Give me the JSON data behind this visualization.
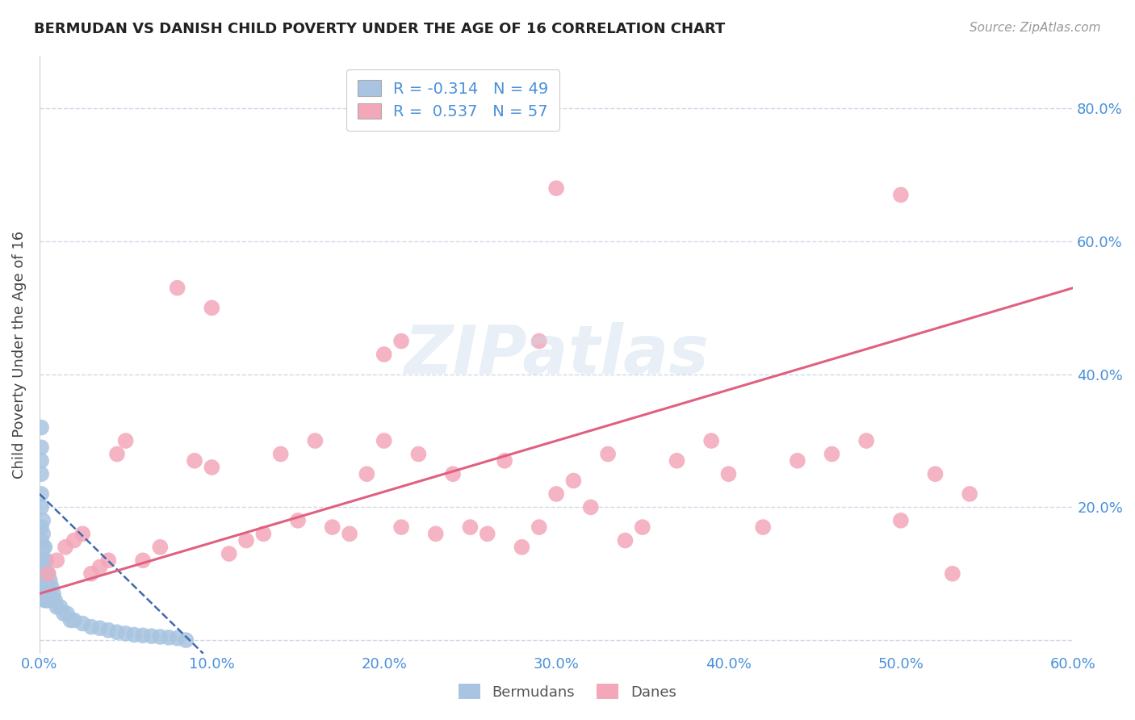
{
  "title": "BERMUDAN VS DANISH CHILD POVERTY UNDER THE AGE OF 16 CORRELATION CHART",
  "source": "Source: ZipAtlas.com",
  "ylabel": "Child Poverty Under the Age of 16",
  "xlim": [
    0.0,
    0.6
  ],
  "ylim": [
    -0.02,
    0.88
  ],
  "blue_color": "#a8c4e0",
  "pink_color": "#f4a7b9",
  "blue_line_color": "#4169b0",
  "pink_line_color": "#e06080",
  "tick_label_color": "#4a90d9",
  "watermark": "ZIPatlas",
  "grid_color": "#d0d8e8",
  "bermuda_x": [
    0.001,
    0.001,
    0.001,
    0.001,
    0.001,
    0.001,
    0.001,
    0.001,
    0.002,
    0.002,
    0.002,
    0.002,
    0.002,
    0.002,
    0.003,
    0.003,
    0.003,
    0.003,
    0.003,
    0.004,
    0.004,
    0.004,
    0.004,
    0.005,
    0.005,
    0.005,
    0.006,
    0.007,
    0.008,
    0.009,
    0.01,
    0.012,
    0.014,
    0.016,
    0.018,
    0.02,
    0.025,
    0.03,
    0.035,
    0.04,
    0.045,
    0.05,
    0.055,
    0.06,
    0.065,
    0.07,
    0.075,
    0.08,
    0.085
  ],
  "bermuda_y": [
    0.32,
    0.29,
    0.27,
    0.25,
    0.22,
    0.2,
    0.17,
    0.15,
    0.18,
    0.16,
    0.14,
    0.12,
    0.1,
    0.08,
    0.14,
    0.12,
    0.1,
    0.08,
    0.06,
    0.12,
    0.1,
    0.08,
    0.06,
    0.1,
    0.08,
    0.06,
    0.09,
    0.08,
    0.07,
    0.06,
    0.05,
    0.05,
    0.04,
    0.04,
    0.03,
    0.03,
    0.025,
    0.02,
    0.018,
    0.015,
    0.012,
    0.01,
    0.008,
    0.007,
    0.006,
    0.005,
    0.004,
    0.003,
    0.0
  ],
  "danish_x": [
    0.005,
    0.01,
    0.015,
    0.02,
    0.025,
    0.03,
    0.035,
    0.04,
    0.045,
    0.05,
    0.06,
    0.07,
    0.08,
    0.09,
    0.1,
    0.11,
    0.12,
    0.13,
    0.14,
    0.15,
    0.16,
    0.17,
    0.18,
    0.19,
    0.2,
    0.21,
    0.22,
    0.23,
    0.24,
    0.25,
    0.26,
    0.27,
    0.28,
    0.29,
    0.3,
    0.31,
    0.32,
    0.33,
    0.34,
    0.35,
    0.37,
    0.39,
    0.4,
    0.42,
    0.44,
    0.46,
    0.48,
    0.5,
    0.52,
    0.54,
    0.21,
    0.29,
    0.5,
    0.1,
    0.2,
    0.3,
    0.53
  ],
  "danish_y": [
    0.1,
    0.12,
    0.14,
    0.15,
    0.16,
    0.1,
    0.11,
    0.12,
    0.28,
    0.3,
    0.12,
    0.14,
    0.53,
    0.27,
    0.26,
    0.13,
    0.15,
    0.16,
    0.28,
    0.18,
    0.3,
    0.17,
    0.16,
    0.25,
    0.3,
    0.17,
    0.28,
    0.16,
    0.25,
    0.17,
    0.16,
    0.27,
    0.14,
    0.17,
    0.22,
    0.24,
    0.2,
    0.28,
    0.15,
    0.17,
    0.27,
    0.3,
    0.25,
    0.17,
    0.27,
    0.28,
    0.3,
    0.18,
    0.25,
    0.22,
    0.45,
    0.45,
    0.67,
    0.5,
    0.43,
    0.68,
    0.1
  ],
  "blue_trend_x": [
    0.0,
    0.095
  ],
  "blue_trend_y": [
    0.22,
    -0.02
  ],
  "pink_trend_x": [
    0.0,
    0.6
  ],
  "pink_trend_y": [
    0.07,
    0.53
  ]
}
